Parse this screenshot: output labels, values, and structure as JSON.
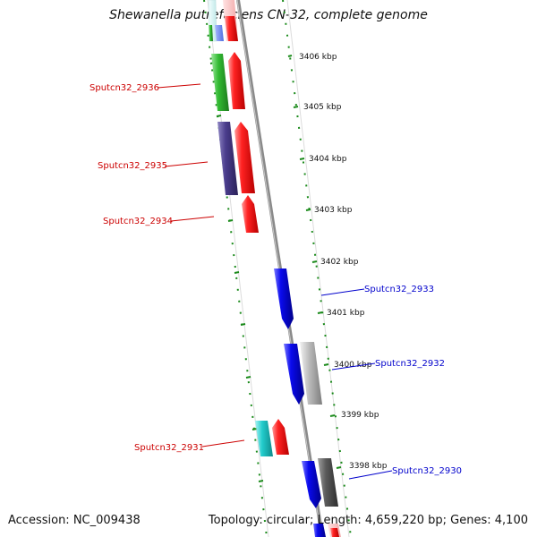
{
  "title": "Shewanella putrefaciens CN-32, complete genome",
  "accession": "Accession: NC_009438",
  "topology": "Topology: circular; Length: 4,659,220 bp; Genes: 4,100",
  "kbp_ticks": [
    "3406 kbp",
    "3405 kbp",
    "3404 kbp",
    "3403 kbp",
    "3402 kbp",
    "3401 kbp",
    "3400 kbp",
    "3399 kbp",
    "3398 kbp"
  ],
  "forward_labels": [
    "Sputcn32_2936",
    "Sputcn32_2935",
    "Sputcn32_2934",
    "Sputcn32_2931"
  ],
  "reverse_labels": [
    "Sputcn32_2933",
    "Sputcn32_2932",
    "Sputcn32_2930"
  ],
  "colors": {
    "forward_label": "#cc0000",
    "reverse_label": "#0000cc",
    "tick_green": "#1a8a1a",
    "backbone": "#8c8c8c",
    "track_edge": "#d8d8d8",
    "red_gene": "#ee1111",
    "blue_gene": "#0a0aee",
    "green_gene": "#33bb33",
    "purple_gene": "#4a3d8c",
    "cyan_gene": "#22cccc",
    "gray_gene": "#aaaaaa",
    "dark_gray_gene": "#555555"
  }
}
